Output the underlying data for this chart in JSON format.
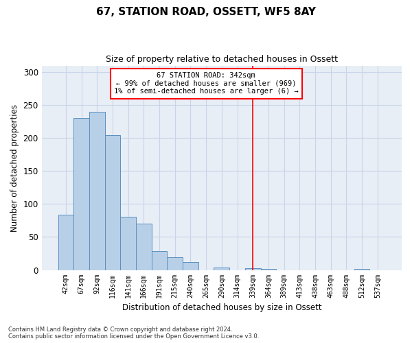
{
  "title1": "67, STATION ROAD, OSSETT, WF5 8AY",
  "title2": "Size of property relative to detached houses in Ossett",
  "xlabel": "Distribution of detached houses by size in Ossett",
  "ylabel": "Number of detached properties",
  "footnote": "Contains HM Land Registry data © Crown copyright and database right 2024.\nContains public sector information licensed under the Open Government Licence v3.0.",
  "categories": [
    "42sqm",
    "67sqm",
    "92sqm",
    "116sqm",
    "141sqm",
    "166sqm",
    "191sqm",
    "215sqm",
    "240sqm",
    "265sqm",
    "290sqm",
    "314sqm",
    "339sqm",
    "364sqm",
    "389sqm",
    "413sqm",
    "438sqm",
    "463sqm",
    "488sqm",
    "512sqm",
    "537sqm"
  ],
  "values": [
    84,
    230,
    240,
    204,
    81,
    70,
    29,
    19,
    12,
    0,
    4,
    0,
    3,
    2,
    0,
    0,
    0,
    0,
    0,
    2,
    0
  ],
  "bar_color": "#b8cfe8",
  "bar_edge_color": "#5a8fc0",
  "grid_color": "#c8d4e8",
  "background_color": "#e8eef6",
  "vline_x_index": 12,
  "vline_color": "red",
  "annotation_lines": [
    "67 STATION ROAD: 342sqm",
    "← 99% of detached houses are smaller (969)",
    "1% of semi-detached houses are larger (6) →"
  ],
  "ylim": [
    0,
    310
  ],
  "yticks": [
    0,
    50,
    100,
    150,
    200,
    250,
    300
  ]
}
